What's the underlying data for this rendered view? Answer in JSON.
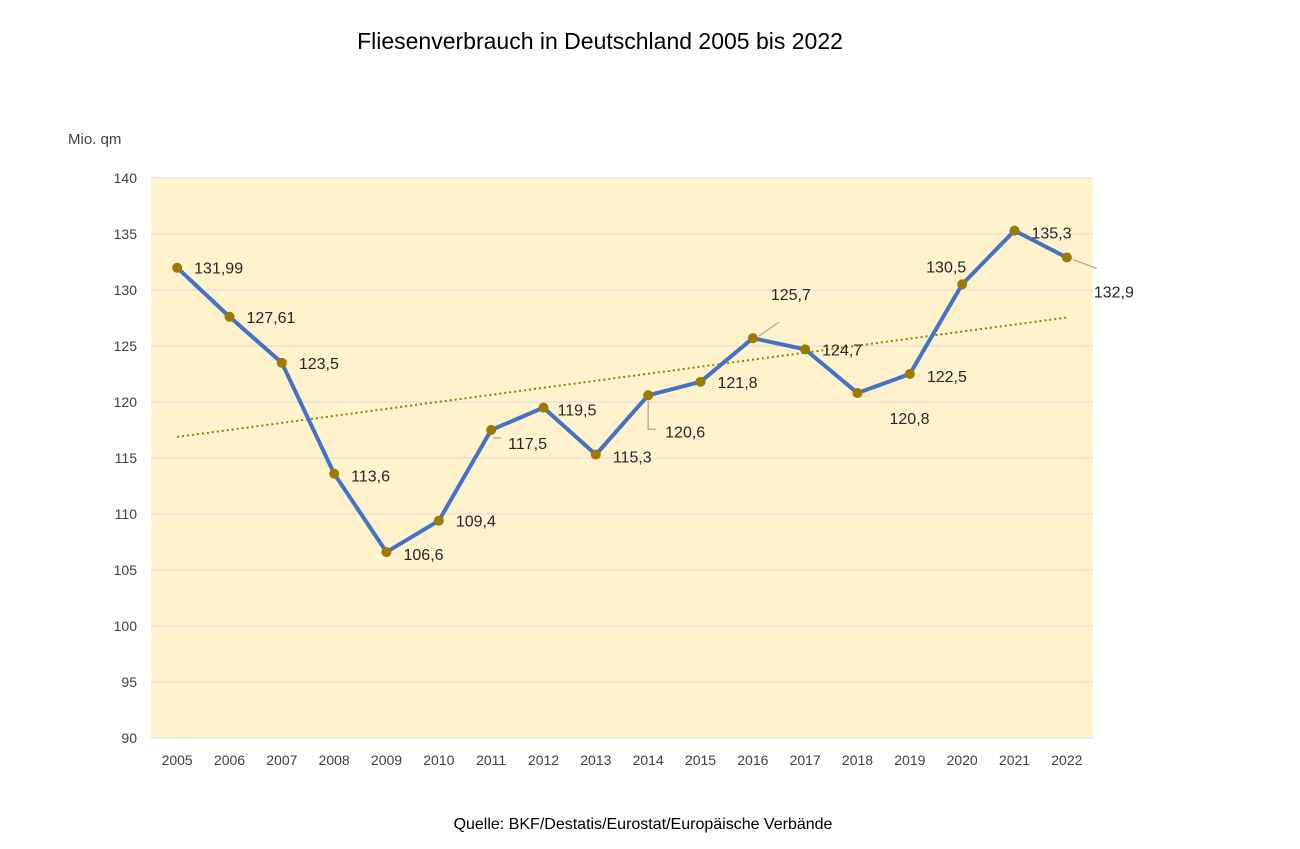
{
  "title": "Fliesenverbrauch in Deutschland 2005 bis 2022",
  "source": "Quelle: BKF/Destatis/Eurostat/Europäische Verbände",
  "colors": {
    "plot_background": "#fff2cc",
    "line": "#4472c4",
    "marker": "#9c7a00",
    "trendline": "#9c7a00",
    "gridline": "#d9d9d9"
  },
  "chart_data": {
    "type": "line",
    "ylabel": "Mio. qm",
    "xlabel": "",
    "categories": [
      "2005",
      "2006",
      "2007",
      "2008",
      "2009",
      "2010",
      "2011",
      "2012",
      "2013",
      "2014",
      "2015",
      "2016",
      "2017",
      "2018",
      "2019",
      "2020",
      "2021",
      "2022"
    ],
    "series": [
      {
        "values": [
          131.99,
          127.61,
          123.5,
          113.6,
          106.6,
          109.4,
          117.5,
          119.5,
          115.3,
          120.6,
          121.8,
          125.7,
          124.7,
          120.8,
          122.5,
          130.5,
          135.3,
          132.9
        ],
        "labels": [
          "131,99",
          "127,61",
          "123,5",
          "113,6",
          "106,6",
          "109,4",
          "117,5",
          "119,5",
          "115,3",
          "120,6",
          "121,8",
          "125,7",
          "124,7",
          "120,8",
          "122,5",
          "130,5",
          "135,3",
          "132,9"
        ]
      }
    ],
    "trendline": {
      "type": "linear",
      "style": "dotted"
    },
    "ylim": [
      90,
      140
    ],
    "yticks": [
      90,
      95,
      100,
      105,
      110,
      115,
      120,
      125,
      130,
      135,
      140
    ],
    "grid": true
  }
}
